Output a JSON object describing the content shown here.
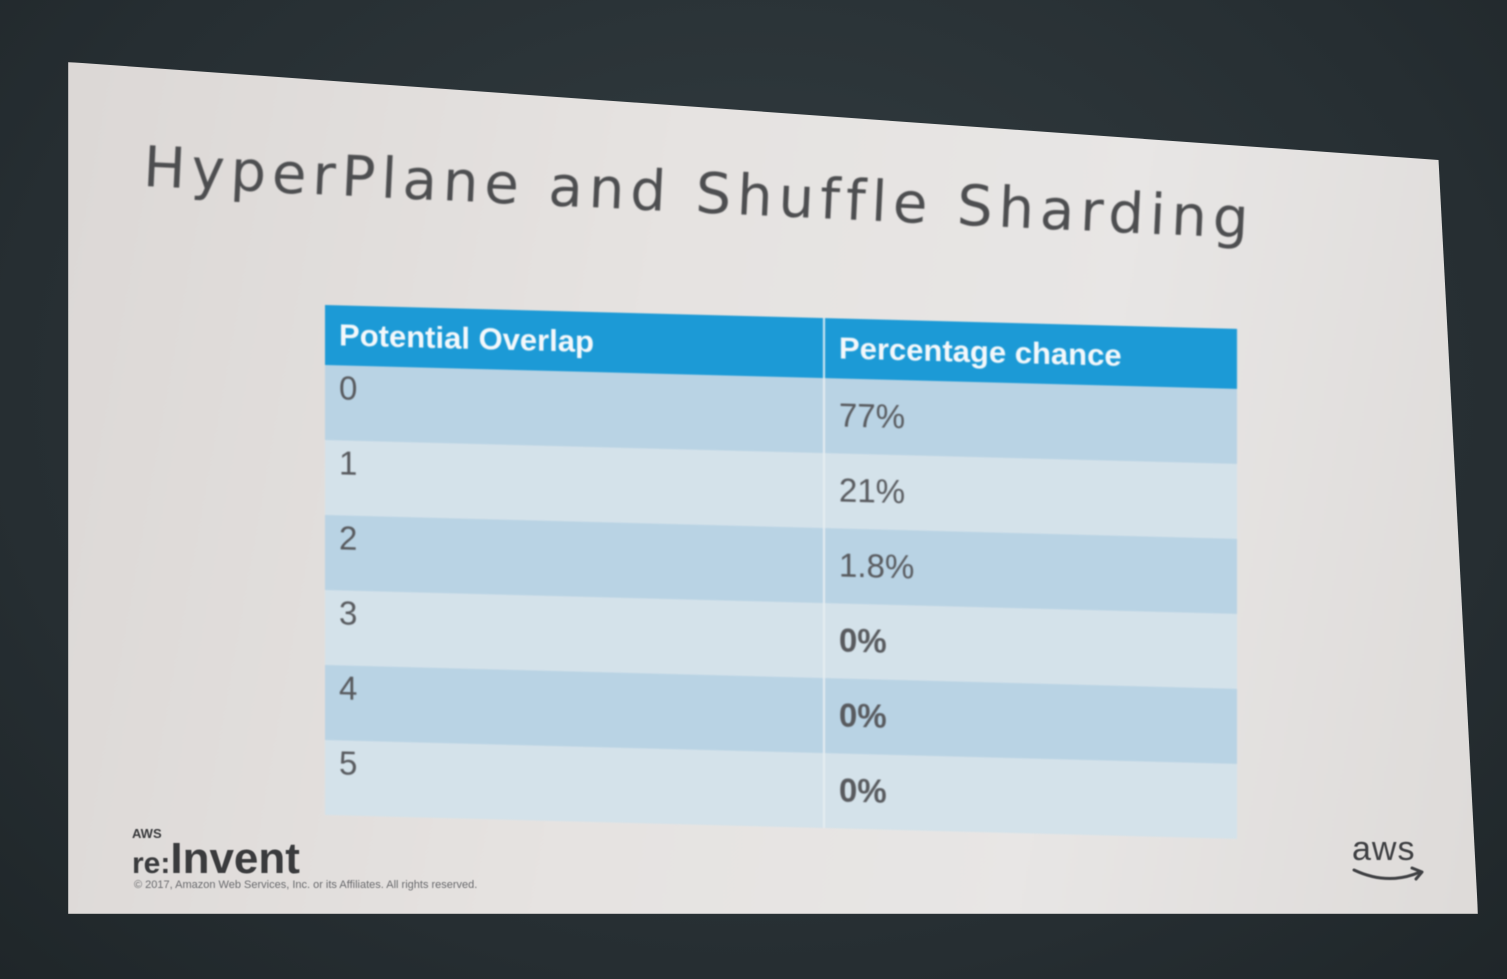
{
  "slide": {
    "title": "HyperPlane and Shuffle Sharding"
  },
  "table": {
    "headers": [
      "Potential Overlap",
      "Percentage chance"
    ],
    "rows": [
      {
        "overlap": "0",
        "chance": "77%"
      },
      {
        "overlap": "1",
        "chance": "21%"
      },
      {
        "overlap": "2",
        "chance": "1.8%"
      },
      {
        "overlap": "3",
        "chance": "0%"
      },
      {
        "overlap": "4",
        "chance": "0%"
      },
      {
        "overlap": "5",
        "chance": "0%"
      }
    ]
  },
  "footer": {
    "logo_small": "AWS",
    "logo_re": "re:",
    "logo_invent": "Invent",
    "copyright": "© 2017, Amazon Web Services, Inc. or its Affiliates. All rights reserved.",
    "brand": "aws"
  },
  "colors": {
    "header_blue": "#1c9ad6",
    "row_dark": "#b9d3e4",
    "row_light": "#d4e2ea",
    "screen": "#e6e3e1"
  }
}
